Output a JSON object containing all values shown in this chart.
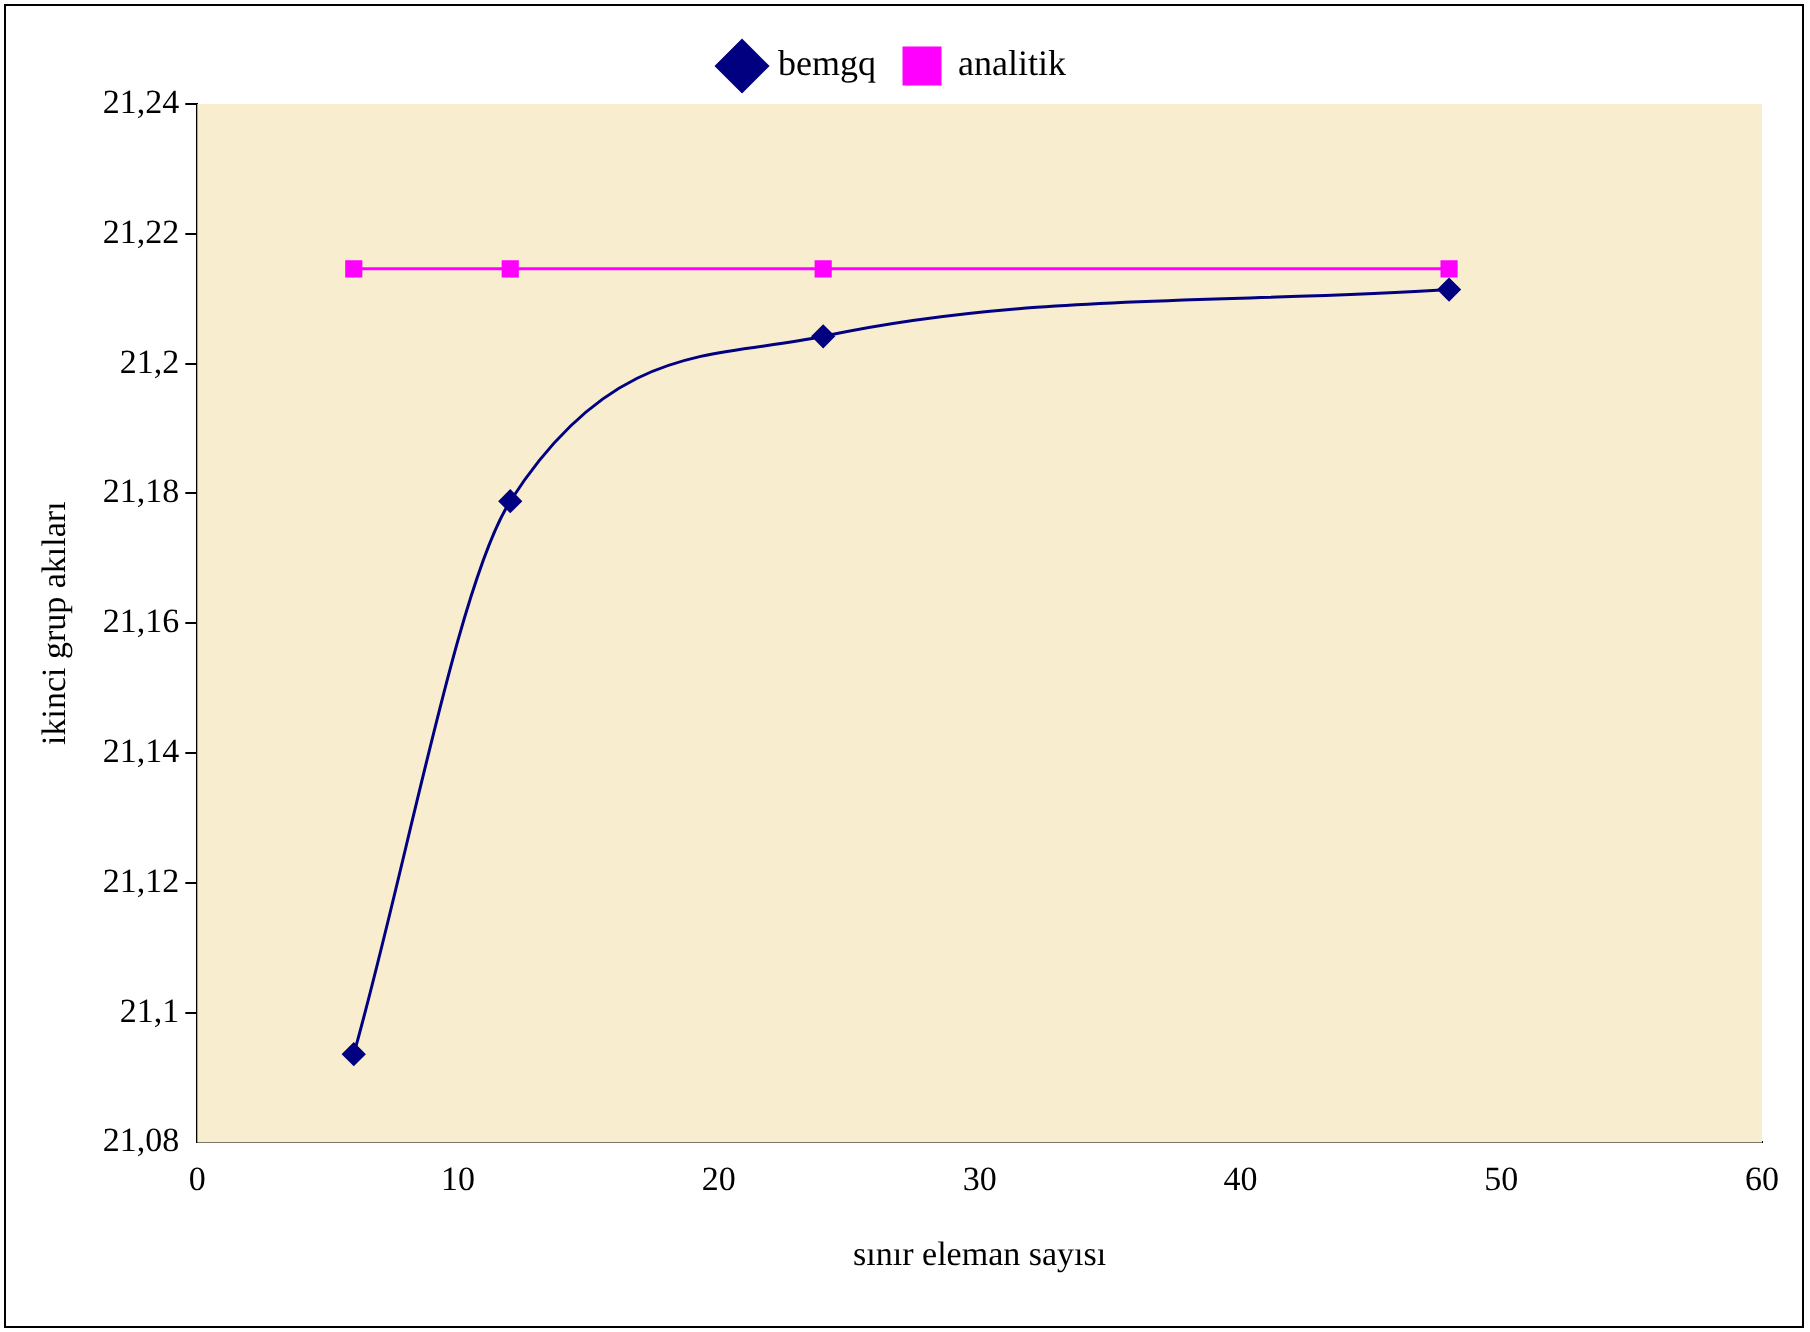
{
  "chart_data": {
    "type": "line",
    "xlabel": "sınır eleman sayısı",
    "ylabel": "ikinci grup akıları",
    "x": [
      6,
      12,
      24,
      48
    ],
    "series": [
      {
        "name": "bemgq",
        "color": "#000080",
        "values": [
          21.0936,
          21.1788,
          21.2042,
          21.2114
        ],
        "marker": "diamond"
      },
      {
        "name": "analitik",
        "color": "#ff00ff",
        "values": [
          21.2146,
          21.2146,
          21.2146,
          21.2146
        ],
        "marker": "square"
      }
    ],
    "xlim": [
      0,
      60
    ],
    "xticks": [
      0,
      10,
      20,
      30,
      40,
      50,
      60
    ],
    "ylim": [
      21.08,
      21.24
    ],
    "yticks": [
      {
        "value": 21.08,
        "label": "21,08"
      },
      {
        "value": 21.1,
        "label": "21,1"
      },
      {
        "value": 21.12,
        "label": "21,12"
      },
      {
        "value": 21.14,
        "label": "21,14"
      },
      {
        "value": 21.16,
        "label": "21,16"
      },
      {
        "value": 21.18,
        "label": "21,18"
      },
      {
        "value": 21.2,
        "label": "21,2"
      },
      {
        "value": 21.22,
        "label": "21,22"
      },
      {
        "value": 21.24,
        "label": "21,24"
      }
    ],
    "grid": false,
    "legend": "top",
    "line_style": "solid"
  }
}
